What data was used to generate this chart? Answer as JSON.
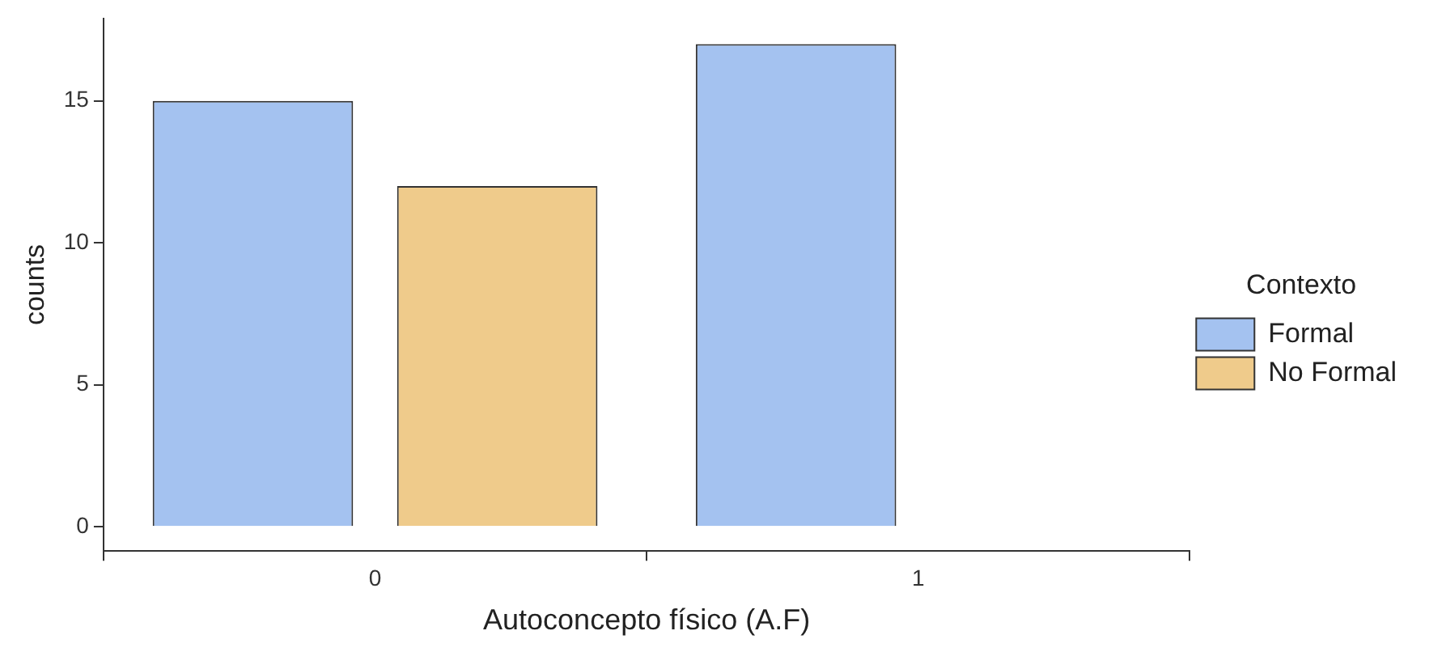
{
  "chart_data": {
    "type": "bar",
    "xlabel": "Autoconcepto físico (A.F)",
    "ylabel": "counts",
    "legend_title": "Contexto",
    "legend": "right",
    "categories": [
      "0",
      "1"
    ],
    "series": [
      {
        "name": "Formal",
        "color": "#a4c2f0",
        "values": [
          15,
          17
        ]
      },
      {
        "name": "No Formal",
        "color": "#efcb8b",
        "values": [
          12,
          0
        ]
      }
    ],
    "ylim": [
      -0.85,
      17.9
    ],
    "yticks": [
      0,
      5,
      10,
      15
    ]
  }
}
